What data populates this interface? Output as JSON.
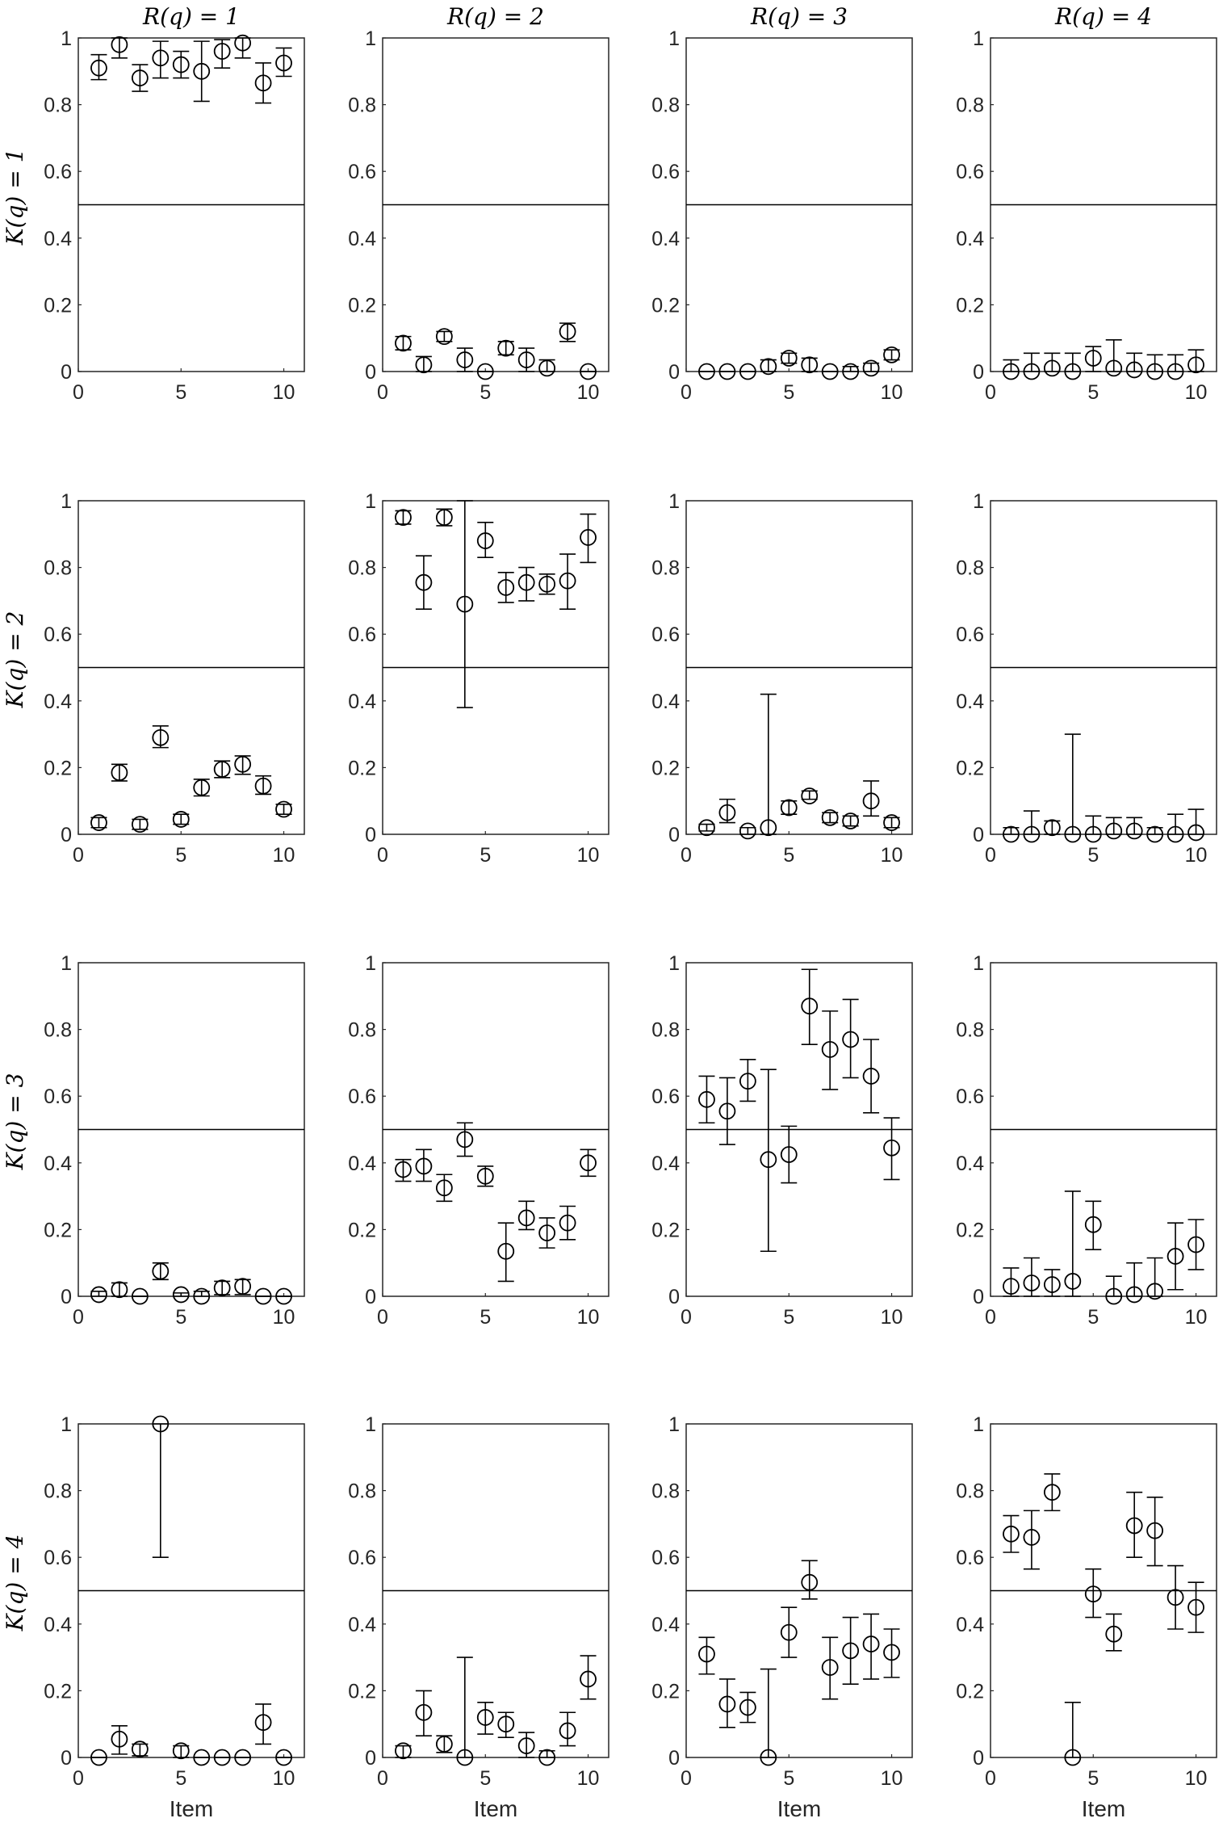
{
  "column_titles": [
    "R(q) = 1",
    "R(q) = 2",
    "R(q) = 3",
    "R(q) = 4"
  ],
  "row_titles": [
    "K(q) = 1",
    "K(q) = 2",
    "K(q) = 3",
    "K(q) = 4"
  ],
  "chart_data": {
    "type": "scatter",
    "subtype": "errorbar-grid",
    "xlabel": "Item",
    "xlim": [
      0,
      11
    ],
    "ylim": [
      0,
      1
    ],
    "xticks": [
      0,
      5,
      10
    ],
    "yticks": [
      0,
      0.2,
      0.4,
      0.6,
      0.8,
      1
    ],
    "reference_line_y": 0.5,
    "grid": false,
    "panels": [
      {
        "row": 1,
        "col": 1,
        "x": [
          1,
          2,
          3,
          4,
          5,
          6,
          7,
          8,
          9,
          10
        ],
        "y": [
          0.91,
          0.98,
          0.88,
          0.94,
          0.92,
          0.9,
          0.96,
          0.985,
          0.865,
          0.925
        ],
        "lower": [
          0.875,
          0.94,
          0.84,
          0.88,
          0.88,
          0.81,
          0.91,
          0.94,
          0.805,
          0.885
        ],
        "upper": [
          0.95,
          1.0,
          0.92,
          0.99,
          0.96,
          0.99,
          0.995,
          1.0,
          0.925,
          0.97
        ]
      },
      {
        "row": 1,
        "col": 2,
        "x": [
          1,
          2,
          3,
          4,
          5,
          6,
          7,
          8,
          9,
          10
        ],
        "y": [
          0.085,
          0.02,
          0.105,
          0.035,
          0.0,
          0.07,
          0.035,
          0.01,
          0.12,
          0.0
        ],
        "lower": [
          0.065,
          0.0,
          0.09,
          0.0,
          0.0,
          0.05,
          0.0,
          0.0,
          0.09,
          0.0
        ],
        "upper": [
          0.105,
          0.045,
          0.12,
          0.07,
          0.0,
          0.09,
          0.07,
          0.035,
          0.145,
          0.0
        ]
      },
      {
        "row": 1,
        "col": 3,
        "x": [
          1,
          2,
          3,
          4,
          5,
          6,
          7,
          8,
          9,
          10
        ],
        "y": [
          0.0,
          0.0,
          0.0,
          0.015,
          0.04,
          0.02,
          0.0,
          0.0,
          0.01,
          0.05
        ],
        "lower": [
          0.0,
          0.0,
          0.0,
          0.0,
          0.025,
          0.0,
          0.0,
          0.0,
          0.0,
          0.035
        ],
        "upper": [
          0.0,
          0.0,
          0.0,
          0.035,
          0.055,
          0.04,
          0.0,
          0.015,
          0.025,
          0.065
        ]
      },
      {
        "row": 1,
        "col": 4,
        "x": [
          1,
          2,
          3,
          4,
          5,
          6,
          7,
          8,
          9,
          10
        ],
        "y": [
          0.0,
          0.0,
          0.01,
          0.0,
          0.04,
          0.01,
          0.005,
          0.0,
          0.0,
          0.02
        ],
        "lower": [
          0.0,
          0.0,
          0.0,
          0.0,
          0.0,
          0.0,
          0.0,
          0.0,
          0.0,
          0.0
        ],
        "upper": [
          0.035,
          0.055,
          0.055,
          0.055,
          0.075,
          0.095,
          0.055,
          0.05,
          0.05,
          0.065
        ]
      },
      {
        "row": 2,
        "col": 1,
        "x": [
          1,
          2,
          3,
          4,
          5,
          6,
          7,
          8,
          9,
          10
        ],
        "y": [
          0.035,
          0.185,
          0.03,
          0.29,
          0.045,
          0.14,
          0.195,
          0.21,
          0.145,
          0.075
        ],
        "lower": [
          0.02,
          0.16,
          0.015,
          0.26,
          0.03,
          0.115,
          0.17,
          0.18,
          0.12,
          0.06
        ],
        "upper": [
          0.05,
          0.21,
          0.045,
          0.325,
          0.06,
          0.165,
          0.22,
          0.235,
          0.175,
          0.09
        ]
      },
      {
        "row": 2,
        "col": 2,
        "x": [
          1,
          2,
          3,
          4,
          5,
          6,
          7,
          8,
          9,
          10
        ],
        "y": [
          0.95,
          0.755,
          0.95,
          0.69,
          0.88,
          0.74,
          0.755,
          0.75,
          0.76,
          0.89
        ],
        "lower": [
          0.93,
          0.675,
          0.925,
          0.38,
          0.83,
          0.695,
          0.7,
          0.72,
          0.675,
          0.815
        ],
        "upper": [
          0.97,
          0.835,
          0.975,
          1.0,
          0.935,
          0.785,
          0.8,
          0.78,
          0.84,
          0.96
        ]
      },
      {
        "row": 2,
        "col": 3,
        "x": [
          1,
          2,
          3,
          4,
          5,
          6,
          7,
          8,
          9,
          10
        ],
        "y": [
          0.02,
          0.065,
          0.01,
          0.02,
          0.08,
          0.115,
          0.05,
          0.04,
          0.1,
          0.035
        ],
        "lower": [
          0.01,
          0.035,
          0.0,
          0.0,
          0.06,
          0.105,
          0.035,
          0.025,
          0.055,
          0.02
        ],
        "upper": [
          0.03,
          0.105,
          0.02,
          0.42,
          0.1,
          0.13,
          0.065,
          0.055,
          0.16,
          0.05
        ]
      },
      {
        "row": 2,
        "col": 4,
        "x": [
          1,
          2,
          3,
          4,
          5,
          6,
          7,
          8,
          9,
          10
        ],
        "y": [
          0.0,
          0.0,
          0.02,
          0.0,
          0.0,
          0.01,
          0.01,
          0.0,
          0.0,
          0.005
        ],
        "lower": [
          0.0,
          0.0,
          0.0,
          0.0,
          0.0,
          0.0,
          0.0,
          0.0,
          0.0,
          0.0
        ],
        "upper": [
          0.02,
          0.07,
          0.04,
          0.3,
          0.055,
          0.05,
          0.05,
          0.02,
          0.06,
          0.075
        ]
      },
      {
        "row": 3,
        "col": 1,
        "x": [
          1,
          2,
          3,
          4,
          5,
          6,
          7,
          8,
          9,
          10
        ],
        "y": [
          0.005,
          0.02,
          0.0,
          0.075,
          0.005,
          0.0,
          0.025,
          0.03,
          0.0,
          0.0
        ],
        "lower": [
          0.0,
          0.0,
          0.0,
          0.05,
          0.0,
          0.0,
          0.005,
          0.005,
          0.0,
          0.0
        ],
        "upper": [
          0.015,
          0.04,
          0.0,
          0.1,
          0.01,
          0.015,
          0.045,
          0.05,
          0.0,
          0.0
        ]
      },
      {
        "row": 3,
        "col": 2,
        "x": [
          1,
          2,
          3,
          4,
          5,
          6,
          7,
          8,
          9,
          10
        ],
        "y": [
          0.38,
          0.39,
          0.325,
          0.47,
          0.36,
          0.135,
          0.235,
          0.19,
          0.22,
          0.4
        ],
        "lower": [
          0.345,
          0.345,
          0.285,
          0.42,
          0.33,
          0.045,
          0.2,
          0.145,
          0.17,
          0.36
        ],
        "upper": [
          0.41,
          0.44,
          0.365,
          0.52,
          0.39,
          0.22,
          0.285,
          0.235,
          0.27,
          0.44
        ]
      },
      {
        "row": 3,
        "col": 3,
        "x": [
          1,
          2,
          3,
          4,
          5,
          6,
          7,
          8,
          9,
          10
        ],
        "y": [
          0.59,
          0.555,
          0.645,
          0.41,
          0.425,
          0.87,
          0.74,
          0.77,
          0.66,
          0.445
        ],
        "lower": [
          0.52,
          0.455,
          0.585,
          0.135,
          0.34,
          0.755,
          0.62,
          0.655,
          0.55,
          0.35
        ],
        "upper": [
          0.66,
          0.655,
          0.71,
          0.68,
          0.51,
          0.98,
          0.855,
          0.89,
          0.77,
          0.535
        ]
      },
      {
        "row": 3,
        "col": 4,
        "x": [
          1,
          2,
          3,
          4,
          5,
          6,
          7,
          8,
          9,
          10
        ],
        "y": [
          0.03,
          0.04,
          0.035,
          0.045,
          0.215,
          0.0,
          0.005,
          0.015,
          0.12,
          0.155
        ],
        "lower": [
          0.0,
          0.0,
          0.0,
          0.0,
          0.14,
          0.0,
          0.0,
          0.0,
          0.02,
          0.08
        ],
        "upper": [
          0.085,
          0.115,
          0.08,
          0.315,
          0.285,
          0.06,
          0.1,
          0.115,
          0.22,
          0.23
        ]
      },
      {
        "row": 4,
        "col": 1,
        "x": [
          1,
          2,
          3,
          4,
          5,
          6,
          7,
          8,
          9,
          10
        ],
        "y": [
          0.0,
          0.055,
          0.025,
          1.0,
          0.02,
          0.0,
          0.0,
          0.0,
          0.105,
          0.0
        ],
        "lower": [
          0.0,
          0.01,
          0.005,
          0.6,
          0.0,
          0.0,
          0.0,
          0.0,
          0.04,
          0.0
        ],
        "upper": [
          0.0,
          0.095,
          0.04,
          1.0,
          0.035,
          0.0,
          0.0,
          0.0,
          0.16,
          0.0
        ]
      },
      {
        "row": 4,
        "col": 2,
        "x": [
          1,
          2,
          3,
          4,
          5,
          6,
          7,
          8,
          9,
          10
        ],
        "y": [
          0.02,
          0.135,
          0.04,
          0.0,
          0.12,
          0.1,
          0.035,
          0.0,
          0.08,
          0.235
        ],
        "lower": [
          0.0,
          0.065,
          0.015,
          0.0,
          0.07,
          0.06,
          0.0,
          0.0,
          0.035,
          0.175
        ],
        "upper": [
          0.035,
          0.2,
          0.065,
          0.3,
          0.165,
          0.135,
          0.075,
          0.02,
          0.135,
          0.305
        ]
      },
      {
        "row": 4,
        "col": 3,
        "x": [
          1,
          2,
          3,
          4,
          5,
          6,
          7,
          8,
          9,
          10
        ],
        "y": [
          0.31,
          0.16,
          0.15,
          0.0,
          0.375,
          0.525,
          0.27,
          0.32,
          0.34,
          0.315
        ],
        "lower": [
          0.25,
          0.09,
          0.105,
          0.0,
          0.3,
          0.475,
          0.175,
          0.22,
          0.235,
          0.24
        ],
        "upper": [
          0.36,
          0.235,
          0.195,
          0.265,
          0.45,
          0.59,
          0.36,
          0.42,
          0.43,
          0.385
        ]
      },
      {
        "row": 4,
        "col": 4,
        "x": [
          1,
          2,
          3,
          4,
          5,
          6,
          7,
          8,
          9,
          10
        ],
        "y": [
          0.67,
          0.66,
          0.795,
          0.0,
          0.49,
          0.37,
          0.695,
          0.68,
          0.48,
          0.45
        ],
        "lower": [
          0.615,
          0.565,
          0.74,
          0.0,
          0.42,
          0.32,
          0.6,
          0.575,
          0.385,
          0.375
        ],
        "upper": [
          0.725,
          0.74,
          0.85,
          0.165,
          0.565,
          0.43,
          0.795,
          0.78,
          0.575,
          0.525
        ]
      }
    ]
  }
}
